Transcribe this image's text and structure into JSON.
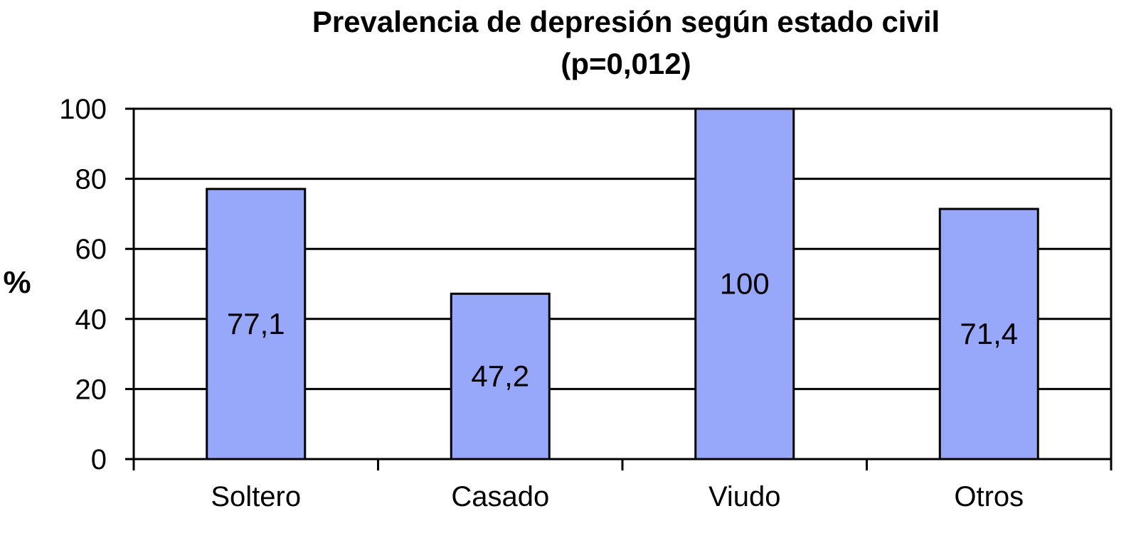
{
  "chart_data": {
    "type": "bar",
    "title": "Prevalencia de depresión según estado civil",
    "subtitle": "(p=0,012)",
    "xlabel": "",
    "ylabel": "%",
    "categories": [
      "Soltero",
      "Casado",
      "Viudo",
      "Otros"
    ],
    "values": [
      77.1,
      47.2,
      100,
      71.4
    ],
    "data_labels": [
      "77,1",
      "47,2",
      "100",
      "71,4"
    ],
    "ylim": [
      0,
      100
    ],
    "yticks": [
      0,
      20,
      40,
      60,
      80,
      100
    ],
    "ytick_labels": [
      "0",
      "20",
      "40",
      "60",
      "80",
      "100"
    ],
    "grid": true,
    "legend": "none",
    "bar_color": "#97a8fb",
    "edge_color": "#000000"
  }
}
